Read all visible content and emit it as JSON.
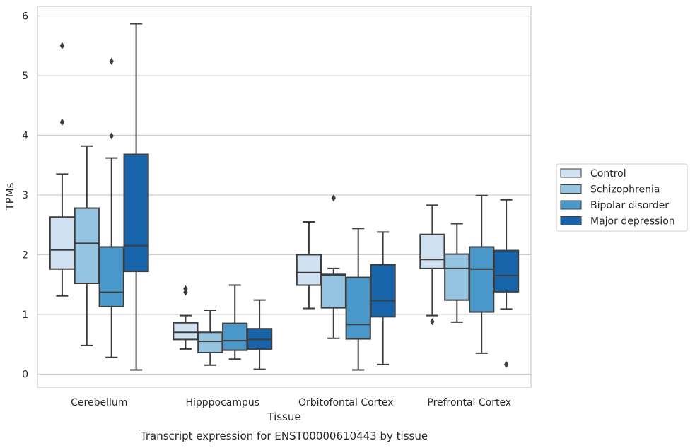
{
  "chart_data": {
    "type": "box",
    "title": "",
    "caption": "Transcript expression for ENST00000610443 by tissue",
    "xlabel": "Tissue",
    "ylabel": "TPMs",
    "ylim": [
      -0.22,
      6.16
    ],
    "yticks": [
      0,
      1,
      2,
      3,
      4,
      5,
      6
    ],
    "grid": true,
    "legend_position": "right",
    "categories": [
      "Cerebellum",
      "Hipppocampus",
      "Orbitofontal Cortex",
      "Prefrontal Cortex"
    ],
    "series": [
      {
        "name": "Control",
        "color": "#d0e1f2",
        "boxes": [
          {
            "whisker_low": 1.31,
            "q1": 1.76,
            "median": 2.08,
            "q3": 2.63,
            "whisker_high": 3.35,
            "outliers": [
              4.22,
              5.5
            ]
          },
          {
            "whisker_low": 0.42,
            "q1": 0.58,
            "median": 0.7,
            "q3": 0.86,
            "whisker_high": 0.98,
            "outliers": [
              1.37,
              1.43
            ]
          },
          {
            "whisker_low": 1.1,
            "q1": 1.49,
            "median": 1.7,
            "q3": 2.0,
            "whisker_high": 2.55,
            "outliers": []
          },
          {
            "whisker_low": 0.98,
            "q1": 1.77,
            "median": 1.92,
            "q3": 2.34,
            "whisker_high": 2.83,
            "outliers": [
              0.88
            ]
          }
        ]
      },
      {
        "name": "Schizophrenia",
        "color": "#94c4df",
        "boxes": [
          {
            "whisker_low": 0.48,
            "q1": 1.52,
            "median": 2.19,
            "q3": 2.78,
            "whisker_high": 3.82,
            "outliers": []
          },
          {
            "whisker_low": 0.15,
            "q1": 0.36,
            "median": 0.55,
            "q3": 0.7,
            "whisker_high": 1.07,
            "outliers": []
          },
          {
            "whisker_low": 0.6,
            "q1": 1.11,
            "median": 1.66,
            "q3": 1.67,
            "whisker_high": 1.77,
            "outliers": [
              2.95
            ]
          },
          {
            "whisker_low": 0.87,
            "q1": 1.24,
            "median": 1.77,
            "q3": 2.01,
            "whisker_high": 2.52,
            "outliers": []
          }
        ]
      },
      {
        "name": "Bipolar disorder",
        "color": "#4a98c9",
        "boxes": [
          {
            "whisker_low": 0.28,
            "q1": 1.13,
            "median": 1.37,
            "q3": 2.13,
            "whisker_high": 3.62,
            "outliers": [
              3.99,
              5.24
            ]
          },
          {
            "whisker_low": 0.25,
            "q1": 0.4,
            "median": 0.56,
            "q3": 0.85,
            "whisker_high": 1.49,
            "outliers": []
          },
          {
            "whisker_low": 0.07,
            "q1": 0.59,
            "median": 0.83,
            "q3": 1.62,
            "whisker_high": 2.44,
            "outliers": []
          },
          {
            "whisker_low": 0.35,
            "q1": 1.04,
            "median": 1.76,
            "q3": 2.13,
            "whisker_high": 2.99,
            "outliers": []
          }
        ]
      },
      {
        "name": "Major depression",
        "color": "#1764ab",
        "boxes": [
          {
            "whisker_low": 0.07,
            "q1": 1.72,
            "median": 2.15,
            "q3": 3.68,
            "whisker_high": 5.87,
            "outliers": []
          },
          {
            "whisker_low": 0.08,
            "q1": 0.42,
            "median": 0.58,
            "q3": 0.76,
            "whisker_high": 1.24,
            "outliers": []
          },
          {
            "whisker_low": 0.16,
            "q1": 0.96,
            "median": 1.23,
            "q3": 1.83,
            "whisker_high": 2.38,
            "outliers": []
          },
          {
            "whisker_low": 1.09,
            "q1": 1.38,
            "median": 1.65,
            "q3": 2.07,
            "whisker_high": 2.92,
            "outliers": [
              0.16
            ]
          }
        ]
      }
    ]
  }
}
